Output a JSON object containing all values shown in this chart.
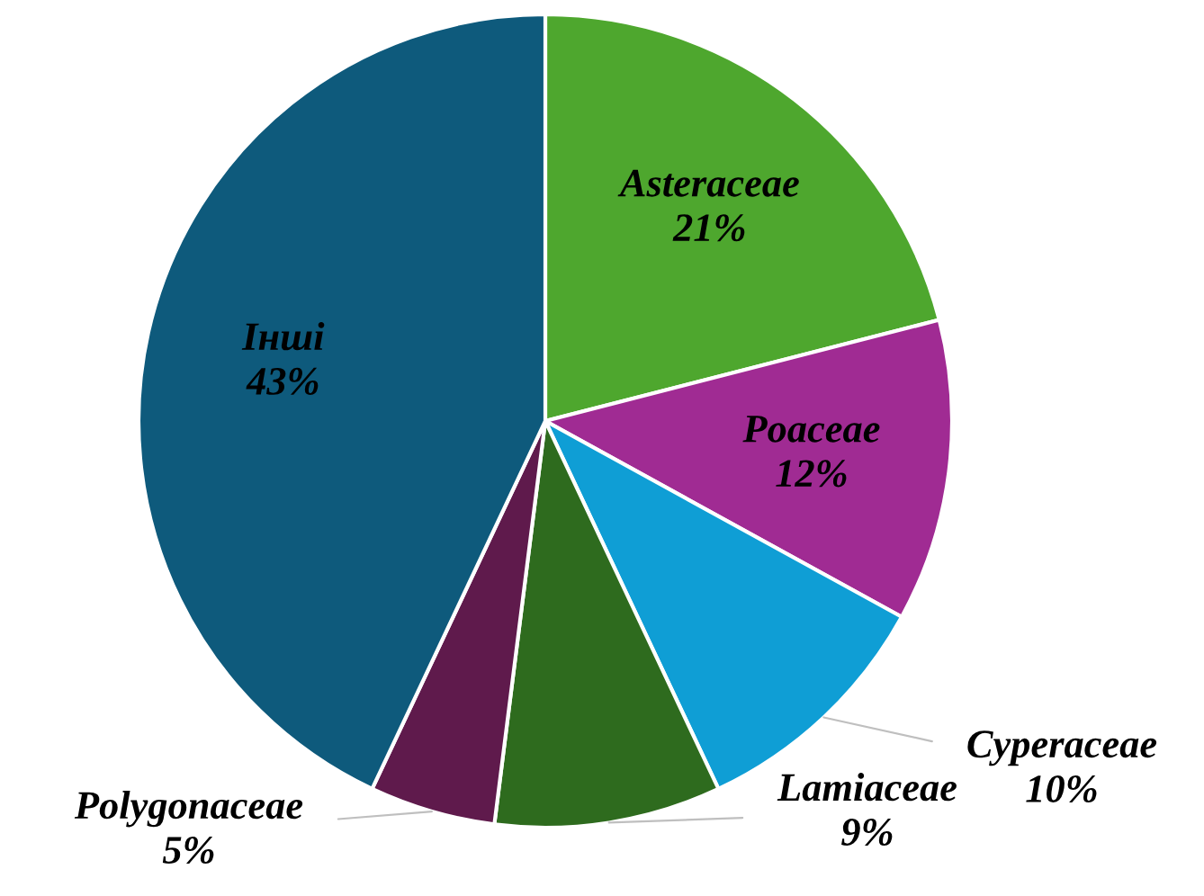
{
  "chart_data": {
    "type": "pie",
    "categories": [
      "Asteraceae",
      "Poaceae",
      "Cyperaceae",
      "Lamiaceae",
      "Polygonaceae",
      "Інші"
    ],
    "values": [
      21,
      12,
      10,
      9,
      5,
      43
    ],
    "value_labels": [
      "21%",
      "12%",
      "10%",
      "9%",
      "5%",
      "43%"
    ],
    "colors": [
      "#4ea72e",
      "#a02b93",
      "#0f9ed5",
      "#2e6b1e",
      "#5f1a4c",
      "#0e5a7c"
    ],
    "legend": false
  }
}
